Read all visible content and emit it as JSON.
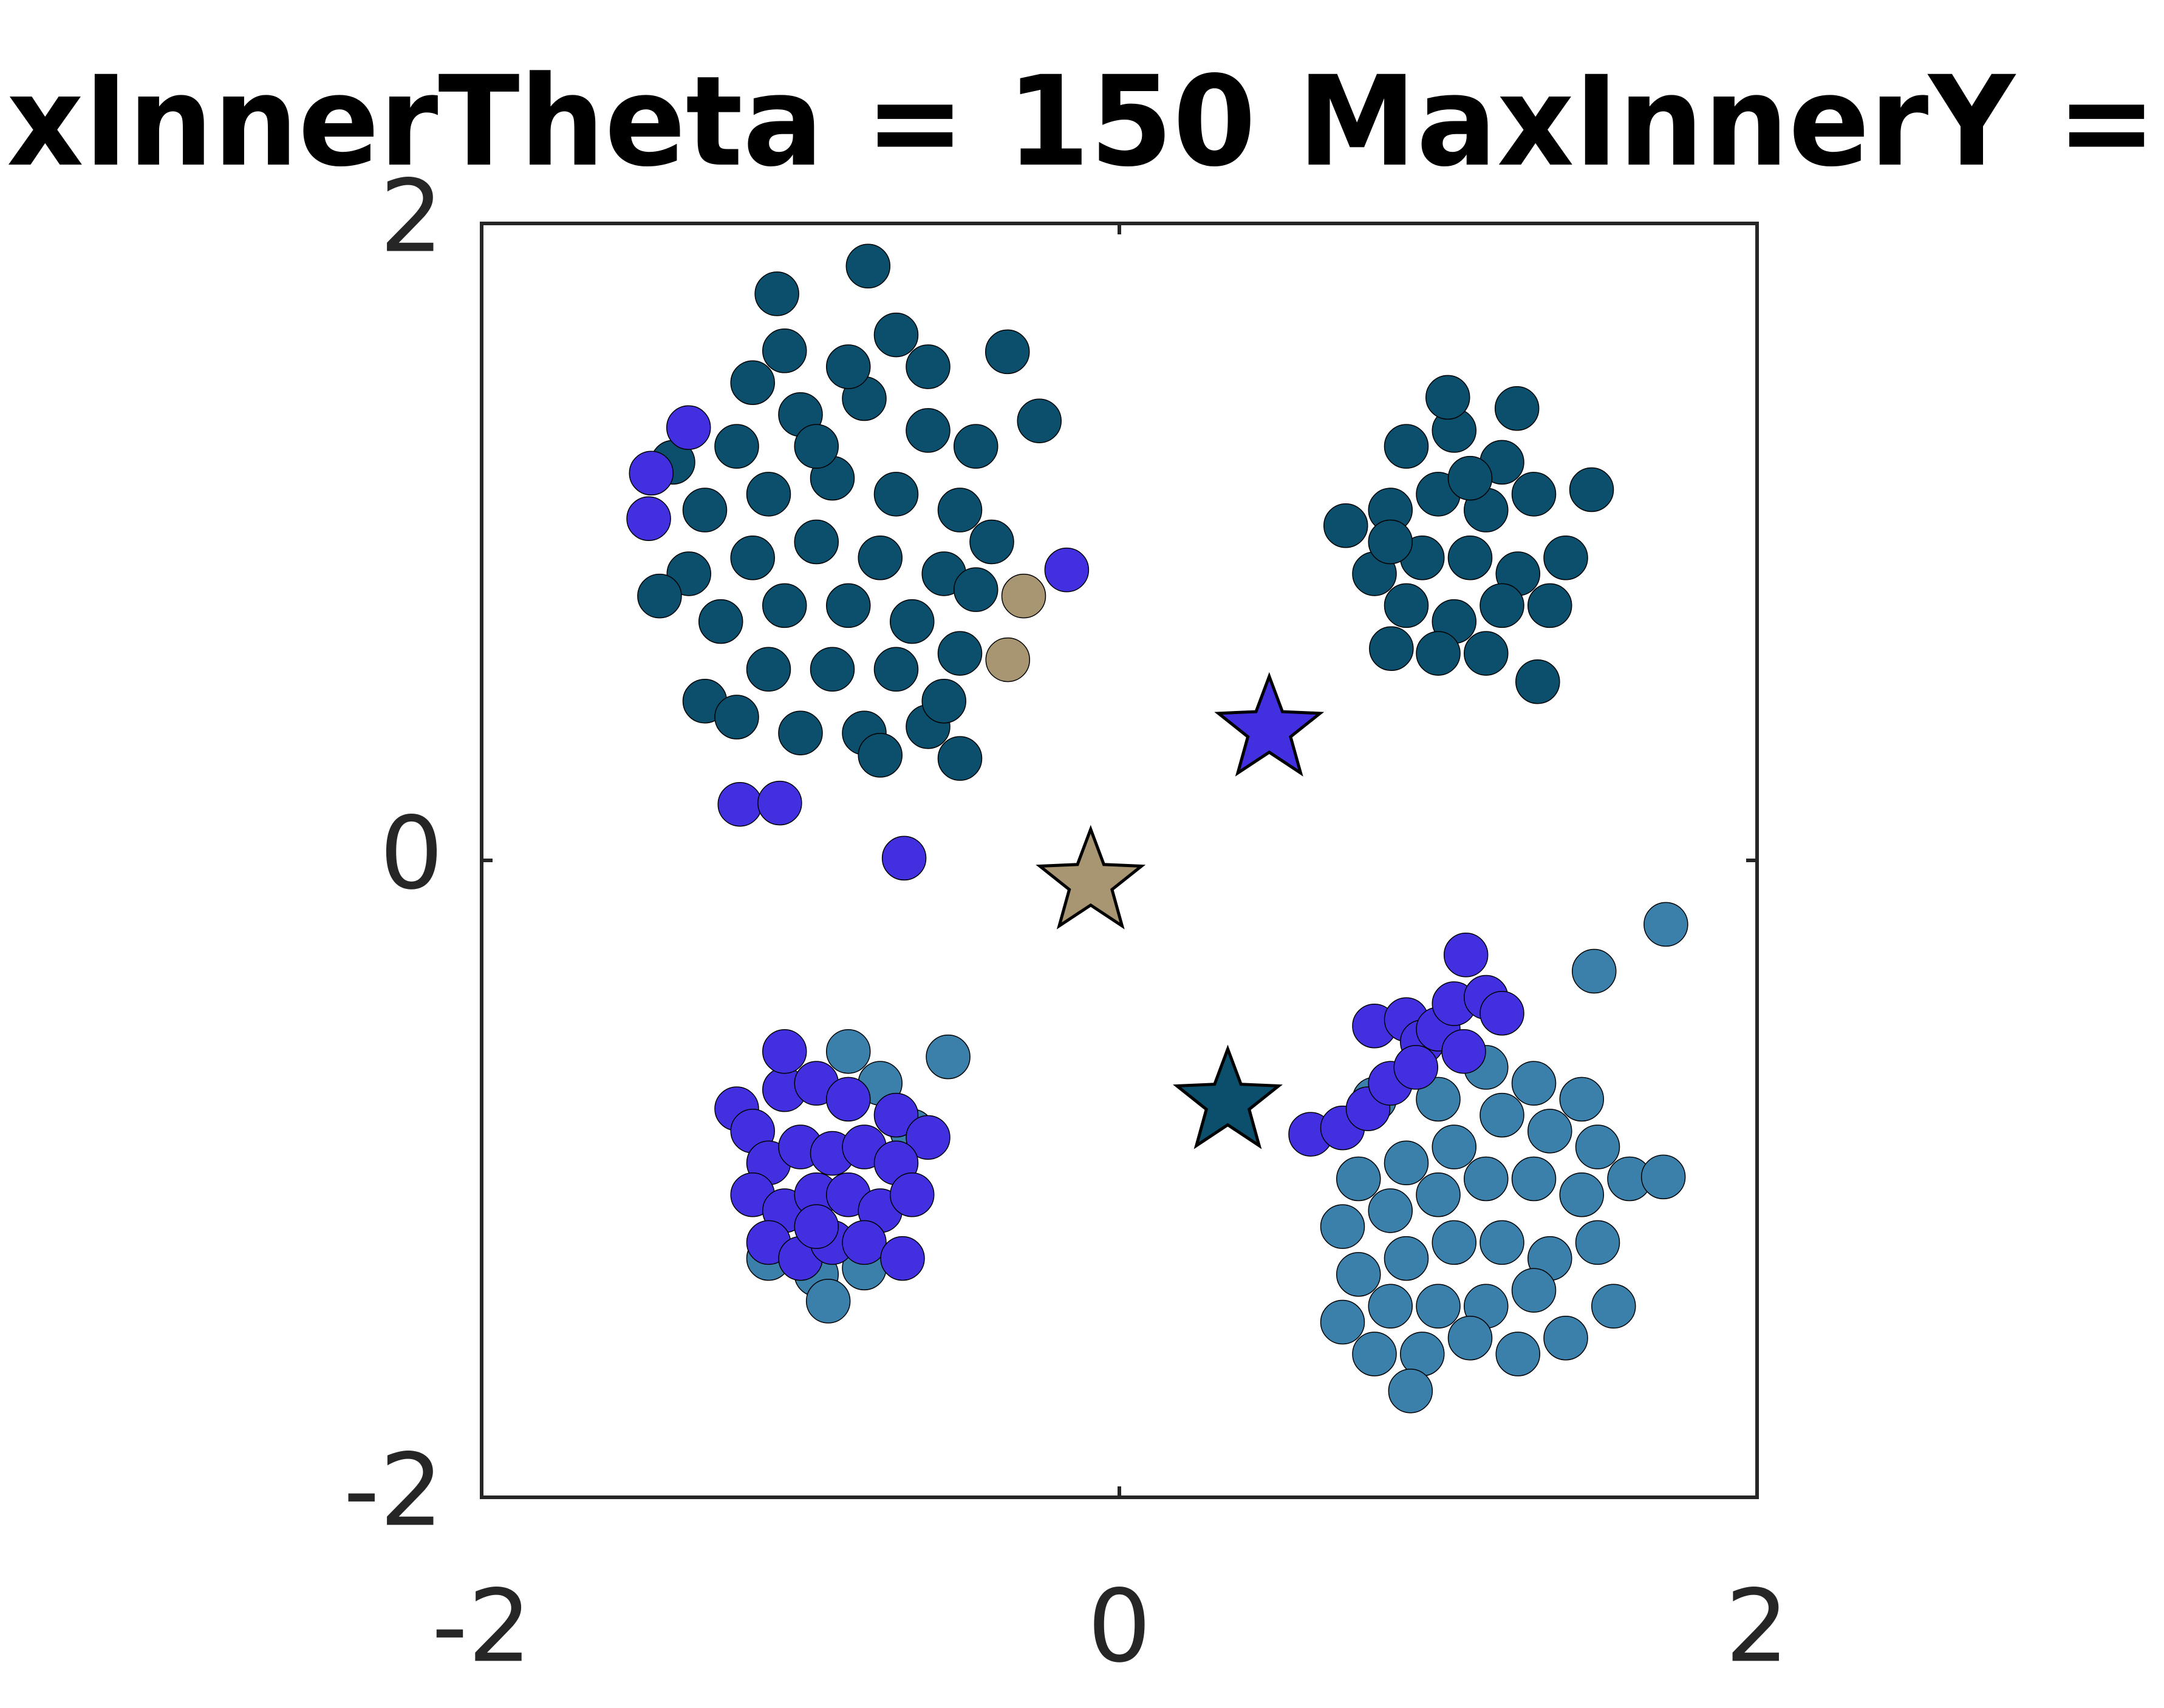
{
  "chart_data": {
    "type": "scatter",
    "title": "xInnerTheta = 150 MaxInnerY =",
    "xlim": [
      -2,
      2
    ],
    "ylim": [
      -2,
      2
    ],
    "xticks": [
      -2,
      0,
      2
    ],
    "yticks": [
      -2,
      0,
      2
    ],
    "series": [
      {
        "color": "#0b4f6c",
        "marker": "circle",
        "x": [
          -1.2,
          -1.0,
          -0.8,
          -0.6,
          -1.3,
          -1.1,
          -0.9,
          -0.7,
          -0.5,
          -1.35,
          -1.15,
          -0.95,
          -0.75,
          -0.55,
          -1.25,
          -1.05,
          -0.85,
          -0.65,
          -0.45,
          -1.1,
          -0.9,
          -0.7,
          -0.5,
          -1.3,
          -1.0,
          -0.8,
          -0.6,
          -0.5,
          -0.75,
          -1.2,
          -1.05,
          -0.7,
          -0.85,
          -1.15,
          -0.6,
          -0.45,
          -1.4,
          -0.4,
          -0.55,
          -0.95,
          -0.788,
          -1.074,
          -0.351,
          -0.251,
          -1.442,
          0.9,
          1.05,
          1.2,
          0.85,
          1.0,
          1.15,
          1.3,
          0.8,
          0.95,
          1.1,
          1.25,
          1.4,
          0.9,
          1.05,
          1.2,
          1.35,
          1.0,
          1.15,
          0.85,
          1.1,
          0.71,
          1.247,
          1.03,
          1.481,
          1.312,
          0.853
        ],
        "y": [
          1.3,
          1.4,
          1.45,
          1.35,
          1.1,
          1.15,
          1.2,
          1.15,
          1.1,
          0.9,
          0.95,
          1.0,
          0.95,
          0.9,
          0.75,
          0.8,
          0.8,
          0.75,
          0.85,
          0.6,
          0.6,
          0.6,
          0.65,
          0.5,
          0.4,
          0.4,
          0.42,
          0.32,
          0.33,
          0.45,
          1.6,
          1.65,
          1.55,
          1.5,
          1.55,
          1.3,
          1.25,
          1.0,
          0.5,
          1.3,
          1.866,
          1.779,
          1.597,
          1.38,
          0.83,
          1.3,
          1.35,
          1.25,
          1.1,
          1.15,
          1.1,
          1.15,
          0.9,
          0.95,
          0.95,
          0.9,
          0.95,
          0.8,
          0.75,
          0.8,
          0.8,
          0.65,
          0.65,
          1.0,
          1.2,
          1.051,
          1.419,
          1.454,
          1.164,
          0.561,
          0.665
        ]
      },
      {
        "color": "#3a80ab",
        "marker": "circle",
        "x": [
          0.75,
          0.9,
          1.05,
          1.2,
          1.35,
          1.5,
          0.7,
          0.85,
          1.0,
          1.15,
          1.3,
          1.45,
          1.6,
          0.75,
          0.9,
          1.05,
          1.2,
          1.35,
          1.5,
          0.7,
          0.85,
          1.0,
          1.15,
          1.3,
          1.55,
          0.8,
          0.95,
          1.1,
          1.25,
          1.4,
          0.8,
          1.0,
          1.3,
          1.45,
          1.15,
          1.714,
          1.489,
          0.913,
          1.706,
          -1.1,
          -0.95,
          -0.8,
          -0.85,
          -0.75,
          -0.65,
          -0.537,
          -0.913
        ],
        "y": [
          -1.0,
          -0.95,
          -0.9,
          -0.8,
          -0.85,
          -0.9,
          -1.15,
          -1.1,
          -1.05,
          -1.0,
          -1.0,
          -1.05,
          -1.0,
          -1.3,
          -1.25,
          -1.2,
          -1.2,
          -1.25,
          -1.2,
          -1.45,
          -1.4,
          -1.4,
          -1.4,
          -1.35,
          -1.4,
          -1.55,
          -1.55,
          -1.5,
          -1.55,
          -1.5,
          -0.75,
          -0.75,
          -0.7,
          -0.75,
          -0.65,
          -0.201,
          -0.348,
          -1.666,
          -0.994,
          -1.25,
          -1.3,
          -1.28,
          -0.6,
          -0.7,
          -0.85,
          -0.617,
          -1.384
        ]
      },
      {
        "color": "#4230e0",
        "marker": "circle",
        "x": [
          -1.2,
          -1.15,
          -1.05,
          -0.95,
          -0.85,
          -0.7,
          -0.6,
          -1.1,
          -1.0,
          -0.9,
          -0.8,
          -0.7,
          -1.15,
          -1.05,
          -0.95,
          -0.85,
          -0.75,
          -1.1,
          -1.0,
          -0.9,
          -0.8,
          -0.68,
          -1.05,
          -0.95,
          -0.65,
          0.6,
          0.7,
          0.78,
          0.85,
          0.8,
          0.9,
          0.95,
          1.0,
          1.05,
          1.15,
          1.2,
          1.08,
          0.93,
          1.087,
          -1.468,
          -1.476,
          -1.351,
          -0.165,
          -1.19,
          -1.065,
          -0.675
        ],
        "y": [
          -0.78,
          -0.85,
          -0.72,
          -0.7,
          -0.75,
          -0.8,
          -0.87,
          -0.95,
          -0.9,
          -0.92,
          -0.9,
          -0.95,
          -1.05,
          -1.1,
          -1.05,
          -1.05,
          -1.1,
          -1.2,
          -1.25,
          -1.2,
          -1.2,
          -1.25,
          -0.6,
          -1.15,
          -1.05,
          -0.86,
          -0.84,
          -0.78,
          -0.7,
          -0.52,
          -0.5,
          -0.57,
          -0.53,
          -0.45,
          -0.43,
          -0.48,
          -0.6,
          -0.65,
          -0.297,
          1.216,
          1.073,
          1.359,
          0.912,
          0.176,
          0.18,
          0.007
        ]
      },
      {
        "color": "#a89672",
        "marker": "circle",
        "x": [
          -0.3,
          -0.35
        ],
        "y": [
          0.83,
          0.63
        ]
      },
      {
        "color": "#a89672",
        "marker": "star",
        "x": [
          -0.09
        ],
        "y": [
          -0.07
        ]
      },
      {
        "color": "#4230e0",
        "marker": "star",
        "x": [
          0.47
        ],
        "y": [
          0.41
        ]
      },
      {
        "color": "#0b4f6c",
        "marker": "star",
        "x": [
          0.34
        ],
        "y": [
          -0.76
        ]
      }
    ]
  }
}
